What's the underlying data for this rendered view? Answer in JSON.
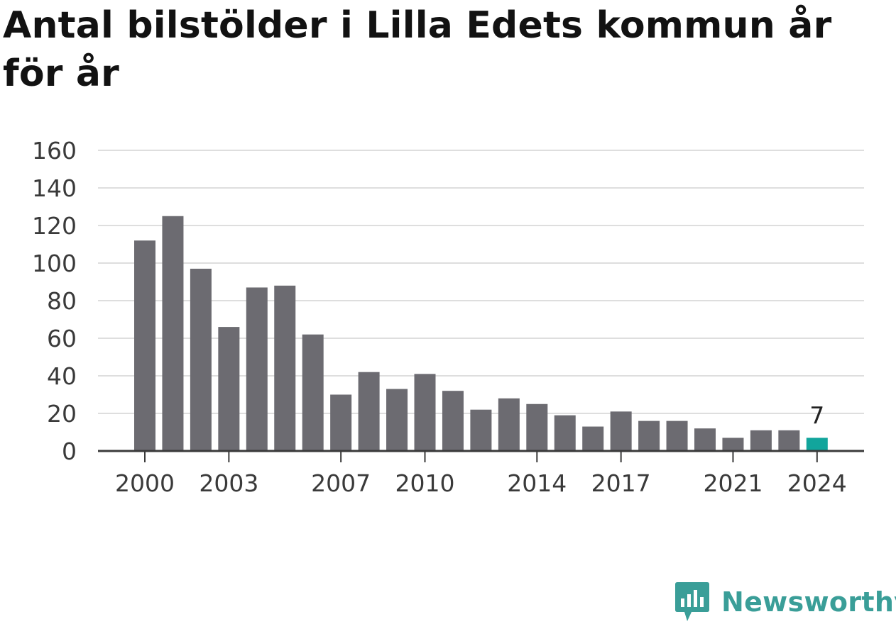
{
  "title": "Antal bilstölder i Lilla Edets kommun år för år",
  "chart_data": {
    "type": "bar",
    "categories": [
      "2000",
      "2001",
      "2002",
      "2003",
      "2004",
      "2005",
      "2006",
      "2007",
      "2008",
      "2009",
      "2010",
      "2011",
      "2012",
      "2013",
      "2014",
      "2015",
      "2016",
      "2017",
      "2018",
      "2019",
      "2020",
      "2021",
      "2022",
      "2023",
      "2024"
    ],
    "values": [
      112,
      125,
      97,
      66,
      87,
      88,
      62,
      30,
      42,
      33,
      41,
      32,
      22,
      28,
      25,
      19,
      13,
      21,
      16,
      16,
      12,
      7,
      11,
      11,
      7
    ],
    "x_tick_labels": [
      "2000",
      "2003",
      "2007",
      "2010",
      "2014",
      "2017",
      "2021",
      "2024"
    ],
    "y_ticks": [
      0,
      20,
      40,
      60,
      80,
      100,
      120,
      140,
      160
    ],
    "ylim": [
      0,
      160
    ],
    "grid": true,
    "highlight": {
      "category": "2024",
      "value_label": "7"
    },
    "colors": {
      "bar": "#6c6b71",
      "highlight": "#12a59c",
      "grid": "#dedede",
      "axis": "#3a3a3a"
    }
  },
  "branding": {
    "logo_text": "Newsworthy",
    "logo_color": "#3a9e98",
    "icon": "bar-chart-speech-bubble-icon"
  }
}
